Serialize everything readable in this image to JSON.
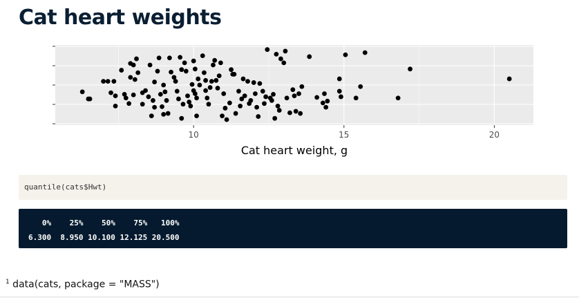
{
  "page": {
    "title": "Cat heart weights"
  },
  "code": {
    "input": "quantile(cats$Hwt)",
    "output_header": "   0%    25%    50%    75%   100% ",
    "output_values": "6.300  8.950 10.100 12.125 20.500 "
  },
  "footnote": {
    "marker": "1",
    "text": " data(cats, package = \"MASS\")"
  },
  "colors": {
    "panel": "#ebebeb",
    "grid": "#ffffff",
    "point": "#000000",
    "code_bg": "#f5f2ec",
    "output_bg": "#051a2e"
  },
  "chart_data": {
    "type": "scatter",
    "title": "",
    "xlabel": "Cat heart weight, g",
    "ylabel": "",
    "xlim": [
      5.4,
      21.3
    ],
    "x_ticks": [
      10,
      15,
      20
    ],
    "x_tick_labels": [
      "10",
      "15",
      "20"
    ],
    "y_jitter_rows": 5,
    "grid": true,
    "legend": "none",
    "points": [
      {
        "x": 6.3,
        "y": 0.58
      },
      {
        "x": 6.5,
        "y": 0.35
      },
      {
        "x": 6.55,
        "y": 0.35
      },
      {
        "x": 7.0,
        "y": 0.92
      },
      {
        "x": 7.15,
        "y": 0.92
      },
      {
        "x": 7.35,
        "y": 0.92
      },
      {
        "x": 7.25,
        "y": 0.55
      },
      {
        "x": 7.4,
        "y": 0.45
      },
      {
        "x": 7.4,
        "y": 0.12
      },
      {
        "x": 7.6,
        "y": 1.28
      },
      {
        "x": 7.7,
        "y": 0.5
      },
      {
        "x": 7.75,
        "y": 0.38
      },
      {
        "x": 7.85,
        "y": 0.2
      },
      {
        "x": 7.9,
        "y": 1.5
      },
      {
        "x": 8.0,
        "y": 1.45
      },
      {
        "x": 7.9,
        "y": 1.05
      },
      {
        "x": 8.05,
        "y": 0.98
      },
      {
        "x": 8.1,
        "y": 1.65
      },
      {
        "x": 8.0,
        "y": 0.48
      },
      {
        "x": 8.15,
        "y": 1.2
      },
      {
        "x": 8.3,
        "y": 0.55
      },
      {
        "x": 8.3,
        "y": 0.18
      },
      {
        "x": 8.4,
        "y": 0.62
      },
      {
        "x": 8.5,
        "y": 0.42
      },
      {
        "x": 8.55,
        "y": 1.45
      },
      {
        "x": 8.6,
        "y": -0.2
      },
      {
        "x": 8.65,
        "y": 0.3
      },
      {
        "x": 8.7,
        "y": 0.9
      },
      {
        "x": 8.8,
        "y": 1.25
      },
      {
        "x": 8.85,
        "y": 1.68
      },
      {
        "x": 8.9,
        "y": 0.5
      },
      {
        "x": 8.7,
        "y": 0.08
      },
      {
        "x": 8.95,
        "y": 0.1
      },
      {
        "x": 9.0,
        "y": 0.8
      },
      {
        "x": 9.05,
        "y": 0.58
      },
      {
        "x": 9.1,
        "y": 0.3
      },
      {
        "x": 9.15,
        "y": -0.12
      },
      {
        "x": 9.2,
        "y": 1.68
      },
      {
        "x": 9.25,
        "y": 1.22
      },
      {
        "x": 9.0,
        "y": -0.15
      },
      {
        "x": 9.35,
        "y": 1.05
      },
      {
        "x": 9.4,
        "y": 0.92
      },
      {
        "x": 9.45,
        "y": 0.6
      },
      {
        "x": 9.5,
        "y": 0.35
      },
      {
        "x": 9.55,
        "y": 1.7
      },
      {
        "x": 9.6,
        "y": 1.3
      },
      {
        "x": 9.7,
        "y": 1.52
      },
      {
        "x": 9.75,
        "y": 1.25
      },
      {
        "x": 9.8,
        "y": 0.45
      },
      {
        "x": 9.85,
        "y": 0.25
      },
      {
        "x": 9.9,
        "y": 0.12
      },
      {
        "x": 9.95,
        "y": 0.82
      },
      {
        "x": 10.0,
        "y": 1.58
      },
      {
        "x": 10.05,
        "y": 1.32
      },
      {
        "x": 10.0,
        "y": 0.62
      },
      {
        "x": 10.05,
        "y": 0.52
      },
      {
        "x": 10.1,
        "y": 0.38
      },
      {
        "x": 10.15,
        "y": 1.0
      },
      {
        "x": 10.2,
        "y": 0.8
      },
      {
        "x": 9.65,
        "y": 0.18
      },
      {
        "x": 9.6,
        "y": -0.28
      },
      {
        "x": 10.3,
        "y": 1.75
      },
      {
        "x": 10.35,
        "y": 1.2
      },
      {
        "x": 10.4,
        "y": 0.62
      },
      {
        "x": 10.45,
        "y": 0.38
      },
      {
        "x": 10.5,
        "y": 0.18
      },
      {
        "x": 10.55,
        "y": 0.72
      },
      {
        "x": 10.6,
        "y": 0.92
      },
      {
        "x": 10.65,
        "y": 1.45
      },
      {
        "x": 10.7,
        "y": 1.6
      },
      {
        "x": 10.75,
        "y": 0.95
      },
      {
        "x": 10.8,
        "y": 0.7
      },
      {
        "x": 10.85,
        "y": 1.1
      },
      {
        "x": 10.9,
        "y": 1.52
      },
      {
        "x": 10.1,
        "y": -0.2
      },
      {
        "x": 10.4,
        "y": 0.95
      },
      {
        "x": 10.95,
        "y": -0.2
      },
      {
        "x": 11.0,
        "y": 0.52
      },
      {
        "x": 11.05,
        "y": 0.05
      },
      {
        "x": 11.1,
        "y": -0.32
      },
      {
        "x": 11.2,
        "y": 0.22
      },
      {
        "x": 11.25,
        "y": 1.3
      },
      {
        "x": 11.3,
        "y": 1.15
      },
      {
        "x": 11.35,
        "y": 1.15
      },
      {
        "x": 11.4,
        "y": -0.12
      },
      {
        "x": 11.5,
        "y": 0.6
      },
      {
        "x": 11.55,
        "y": 0.12
      },
      {
        "x": 11.6,
        "y": 0.35
      },
      {
        "x": 11.65,
        "y": 1.0
      },
      {
        "x": 11.7,
        "y": 0.45
      },
      {
        "x": 11.8,
        "y": 0.92
      },
      {
        "x": 11.85,
        "y": 0.2
      },
      {
        "x": 11.9,
        "y": 0.3
      },
      {
        "x": 12.0,
        "y": 0.88
      },
      {
        "x": 12.05,
        "y": 0.52
      },
      {
        "x": 12.1,
        "y": 0.08
      },
      {
        "x": 12.15,
        "y": -0.22
      },
      {
        "x": 12.2,
        "y": 0.85
      },
      {
        "x": 12.3,
        "y": 0.6
      },
      {
        "x": 12.35,
        "y": 0.2
      },
      {
        "x": 12.4,
        "y": 0.42
      },
      {
        "x": 12.45,
        "y": 1.95
      },
      {
        "x": 12.55,
        "y": 0.38
      },
      {
        "x": 12.6,
        "y": 0.3
      },
      {
        "x": 12.65,
        "y": 0.5
      },
      {
        "x": 12.7,
        "y": -0.28
      },
      {
        "x": 12.75,
        "y": 1.8
      },
      {
        "x": 12.8,
        "y": 0.12
      },
      {
        "x": 12.85,
        "y": -0.02
      },
      {
        "x": 12.9,
        "y": 1.65
      },
      {
        "x": 13.0,
        "y": 1.52
      },
      {
        "x": 13.05,
        "y": 1.9
      },
      {
        "x": 13.1,
        "y": 0.38
      },
      {
        "x": 13.2,
        "y": -0.1
      },
      {
        "x": 13.3,
        "y": 0.65
      },
      {
        "x": 13.35,
        "y": 0.45
      },
      {
        "x": 13.4,
        "y": -0.05
      },
      {
        "x": 13.5,
        "y": 0.52
      },
      {
        "x": 13.55,
        "y": -0.12
      },
      {
        "x": 13.6,
        "y": 0.75
      },
      {
        "x": 13.85,
        "y": 1.72
      },
      {
        "x": 14.1,
        "y": 0.4
      },
      {
        "x": 14.3,
        "y": 0.22
      },
      {
        "x": 14.35,
        "y": 0.52
      },
      {
        "x": 14.45,
        "y": 0.28
      },
      {
        "x": 14.4,
        "y": 0.08
      },
      {
        "x": 14.85,
        "y": 0.6
      },
      {
        "x": 14.85,
        "y": 1.0
      },
      {
        "x": 14.9,
        "y": 0.42
      },
      {
        "x": 15.05,
        "y": 1.78
      },
      {
        "x": 15.4,
        "y": 0.38
      },
      {
        "x": 15.55,
        "y": 0.75
      },
      {
        "x": 15.7,
        "y": 1.85
      },
      {
        "x": 16.8,
        "y": 0.38
      },
      {
        "x": 17.2,
        "y": 1.32
      },
      {
        "x": 20.5,
        "y": 1.0
      }
    ]
  }
}
